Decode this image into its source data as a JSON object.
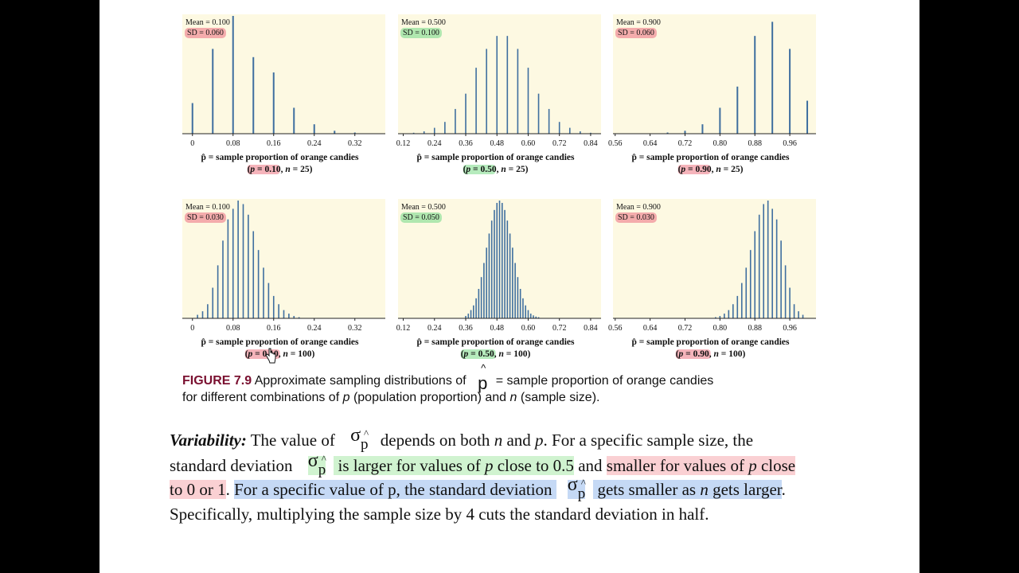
{
  "figure": {
    "label": "FIGURE 7.9",
    "caption_line1_pre": "Approximate sampling distributions of",
    "caption_symbol": "p",
    "caption_line1_post": "= sample proportion of orange candies",
    "caption_line2": [
      {
        "t": "for different combinations of ",
        "i": false
      },
      {
        "t": "p",
        "i": true
      },
      {
        "t": " (population proportion) and ",
        "i": false
      },
      {
        "t": "n",
        "i": true
      },
      {
        "t": " (sample size).",
        "i": false
      }
    ]
  },
  "body_text": {
    "line1": [
      {
        "t": "Variability:",
        "bi": true
      },
      {
        "t": " The value of ",
        "bi": false
      },
      {
        "sym": true
      },
      {
        "t": " depends on both ",
        "bi": false
      },
      {
        "t": "n",
        "i": true
      },
      {
        "t": " and ",
        "bi": false
      },
      {
        "t": "p",
        "i": true
      },
      {
        "t": ". For a specific sample size, the",
        "bi": false
      }
    ],
    "line2": [
      {
        "t": "standard deviation ",
        "h": ""
      },
      {
        "sym": true,
        "h": "g"
      },
      {
        "t": " is larger for values of ",
        "h": "g"
      },
      {
        "t": "p",
        "i": true,
        "h": "g"
      },
      {
        "t": " close to 0.5",
        "h": "g"
      },
      {
        "t": " and ",
        "h": ""
      },
      {
        "t": "smaller for values of ",
        "h": "r"
      },
      {
        "t": "p",
        "i": true,
        "h": "r"
      },
      {
        "t": " close",
        "h": "r"
      }
    ],
    "line3": [
      {
        "t": "to 0 or 1",
        "h": "r"
      },
      {
        "t": ". ",
        "h": ""
      },
      {
        "t": "For a specific value of p, the standard deviation ",
        "h": "b"
      },
      {
        "sym": true,
        "h": "b"
      },
      {
        "t": " gets smaller as ",
        "h": "b"
      },
      {
        "t": "n",
        "i": true,
        "h": "b"
      },
      {
        "t": " gets larger",
        "h": "b"
      },
      {
        "t": ".",
        "h": ""
      }
    ],
    "line4": "Specifically, multiplying the sample size by 4 cuts the standard deviation in half.",
    "sigma_symbol": "σ",
    "sigma_sub": "p"
  },
  "chart_data": [
    {
      "type": "bar",
      "mean_label": "Mean = 0.100",
      "sd_label": "SD = 0.060",
      "sd_highlight": "#f08c96",
      "xlabel": "p̂ = sample proportion of orange candies",
      "params": [
        {
          "t": "(",
          "i": false
        },
        {
          "t": "p",
          "i": true
        },
        {
          "t": " = 0.10, ",
          "i": false
        },
        {
          "t": "n",
          "i": true
        },
        {
          "t": " = 25)",
          "i": false
        }
      ],
      "params_highlight": "#f08c96",
      "xlim": [
        -0.02,
        0.38
      ],
      "ticks": [
        "0",
        "0.08",
        "0.16",
        "0.24",
        "0.32"
      ],
      "x": [
        0,
        0.04,
        0.08,
        0.12,
        0.16,
        0.2,
        0.24,
        0.28,
        0.32
      ],
      "values": [
        0.26,
        0.72,
        1.0,
        0.65,
        0.52,
        0.22,
        0.08,
        0.025,
        0.01
      ]
    },
    {
      "type": "bar",
      "mean_label": "Mean = 0.500",
      "sd_label": "SD = 0.100",
      "sd_highlight": "#8fe09a",
      "xlabel": "p̂ = sample proportion of orange candies",
      "params": [
        {
          "t": "(",
          "i": false
        },
        {
          "t": "p",
          "i": true
        },
        {
          "t": " = 0.50, ",
          "i": false
        },
        {
          "t": "n",
          "i": true
        },
        {
          "t": " = 25)",
          "i": false
        }
      ],
      "params_highlight": "#8fe09a",
      "xlim": [
        0.1,
        0.88
      ],
      "ticks": [
        "0.12",
        "0.24",
        "0.36",
        "0.48",
        "0.60",
        "0.72",
        "0.84"
      ],
      "x": [
        0.12,
        0.16,
        0.2,
        0.24,
        0.28,
        0.32,
        0.36,
        0.4,
        0.44,
        0.48,
        0.52,
        0.56,
        0.6,
        0.64,
        0.68,
        0.72,
        0.76,
        0.8,
        0.84
      ],
      "values": [
        0.003,
        0.008,
        0.02,
        0.05,
        0.1,
        0.21,
        0.34,
        0.56,
        0.72,
        0.83,
        0.83,
        0.72,
        0.56,
        0.34,
        0.21,
        0.1,
        0.05,
        0.02,
        0.008
      ]
    },
    {
      "type": "bar",
      "mean_label": "Mean = 0.900",
      "sd_label": "SD = 0.060",
      "sd_highlight": "#f08c96",
      "xlabel": "p̂ = sample proportion of orange candies",
      "params": [
        {
          "t": "(",
          "i": false
        },
        {
          "t": "p",
          "i": true
        },
        {
          "t": " = 0.90, ",
          "i": false
        },
        {
          "t": "n",
          "i": true
        },
        {
          "t": " = 25)",
          "i": false
        }
      ],
      "params_highlight": "#f08c96",
      "xlim": [
        0.555,
        1.02
      ],
      "ticks": [
        "0.56",
        "0.64",
        "0.72",
        "0.80",
        "0.88",
        "0.96"
      ],
      "x": [
        0.68,
        0.72,
        0.76,
        0.8,
        0.84,
        0.88,
        0.92,
        0.96,
        1.0
      ],
      "values": [
        0.01,
        0.025,
        0.08,
        0.22,
        0.4,
        0.83,
        0.95,
        0.72,
        0.28
      ]
    },
    {
      "type": "bar",
      "mean_label": "Mean = 0.100",
      "sd_label": "SD = 0.030",
      "sd_highlight": "#f08c96",
      "xlabel": "p̂ = sample proportion of orange candies",
      "params": [
        {
          "t": "(",
          "i": false
        },
        {
          "t": "p",
          "i": true
        },
        {
          "t": " = 0.10, ",
          "i": false
        },
        {
          "t": "n",
          "i": true
        },
        {
          "t": " = 100)",
          "i": false
        }
      ],
      "params_highlight": "#f08c96",
      "xlim": [
        -0.02,
        0.38
      ],
      "ticks": [
        "0",
        "0.08",
        "0.16",
        "0.24",
        "0.32"
      ],
      "x": [
        0.01,
        0.02,
        0.03,
        0.04,
        0.05,
        0.06,
        0.07,
        0.08,
        0.09,
        0.1,
        0.11,
        0.12,
        0.13,
        0.14,
        0.15,
        0.16,
        0.17,
        0.18,
        0.19,
        0.2,
        0.21
      ],
      "values": [
        0.03,
        0.06,
        0.12,
        0.26,
        0.45,
        0.66,
        0.84,
        0.93,
        1.0,
        0.97,
        0.88,
        0.74,
        0.58,
        0.43,
        0.3,
        0.19,
        0.12,
        0.07,
        0.04,
        0.02,
        0.01
      ]
    },
    {
      "type": "bar",
      "mean_label": "Mean = 0.500",
      "sd_label": "SD = 0.050",
      "sd_highlight": "#8fe09a",
      "xlabel": "p̂ = sample proportion of orange candies",
      "params": [
        {
          "t": "(",
          "i": false
        },
        {
          "t": "p",
          "i": true
        },
        {
          "t": " = 0.50, ",
          "i": false
        },
        {
          "t": "n",
          "i": true
        },
        {
          "t": " = 100)",
          "i": false
        }
      ],
      "params_highlight": "#8fe09a",
      "xlim": [
        0.1,
        0.88
      ],
      "ticks": [
        "0.12",
        "0.24",
        "0.36",
        "0.48",
        "0.60",
        "0.72",
        "0.84"
      ],
      "x": [
        0.36,
        0.37,
        0.38,
        0.39,
        0.4,
        0.41,
        0.42,
        0.43,
        0.44,
        0.45,
        0.46,
        0.47,
        0.48,
        0.49,
        0.5,
        0.51,
        0.52,
        0.53,
        0.54,
        0.55,
        0.56,
        0.57,
        0.58,
        0.59,
        0.6,
        0.61,
        0.62,
        0.63,
        0.64
      ],
      "values": [
        0.02,
        0.04,
        0.07,
        0.11,
        0.17,
        0.25,
        0.35,
        0.47,
        0.6,
        0.72,
        0.83,
        0.92,
        0.98,
        1.0,
        0.98,
        0.92,
        0.83,
        0.72,
        0.6,
        0.47,
        0.35,
        0.25,
        0.17,
        0.11,
        0.07,
        0.04,
        0.025,
        0.015,
        0.01
      ]
    },
    {
      "type": "bar",
      "mean_label": "Mean = 0.900",
      "sd_label": "SD = 0.030",
      "sd_highlight": "#f08c96",
      "xlabel": "p̂ = sample proportion of orange candies",
      "params": [
        {
          "t": "(",
          "i": false
        },
        {
          "t": "p",
          "i": true
        },
        {
          "t": " = 0.90, ",
          "i": false
        },
        {
          "t": "n",
          "i": true
        },
        {
          "t": " = 100)",
          "i": false
        }
      ],
      "params_highlight": "#f08c96",
      "xlim": [
        0.555,
        1.02
      ],
      "ticks": [
        "0.56",
        "0.64",
        "0.72",
        "0.80",
        "0.88",
        "0.96"
      ],
      "x": [
        0.79,
        0.8,
        0.81,
        0.82,
        0.83,
        0.84,
        0.85,
        0.86,
        0.87,
        0.88,
        0.89,
        0.9,
        0.91,
        0.92,
        0.93,
        0.94,
        0.95,
        0.96,
        0.97,
        0.98,
        0.99
      ],
      "values": [
        0.01,
        0.02,
        0.04,
        0.07,
        0.12,
        0.19,
        0.3,
        0.43,
        0.58,
        0.74,
        0.88,
        0.97,
        1.0,
        0.93,
        0.84,
        0.66,
        0.45,
        0.26,
        0.12,
        0.06,
        0.03
      ]
    }
  ]
}
